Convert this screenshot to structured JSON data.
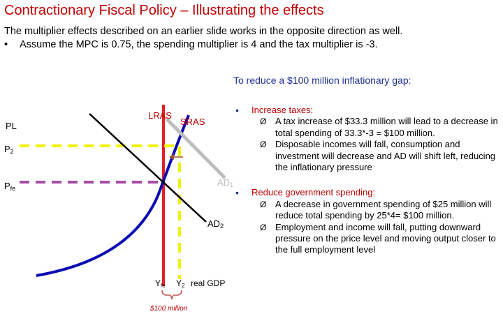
{
  "title": "Contractionary Fiscal Policy – Illustrating the effects",
  "intro": {
    "line1": "The multiplier effects described on an earlier slide works in the opposite direction as well.",
    "bullet": "•",
    "line2": "Assume the MPC is 0.75, the spending multiplier is 4 and the tax multiplier is -3."
  },
  "gap_heading": "To reduce a $100 million inflationary gap:",
  "diagram": {
    "y_axis": "PL",
    "p2": "P",
    "p2_sub": "2",
    "pfe": "P",
    "pfe_sub": "fe",
    "lras": "LRAS",
    "sras": "SRAS",
    "ad1": "AD",
    "ad1_sub": "1",
    "ad2": "AD",
    "ad2_sub": "2",
    "yfe": "Y",
    "yfe_sub": "fe",
    "y2": "Y",
    "y2_sub": "2",
    "x_axis": "real GDP",
    "gap_amount": "$100 million",
    "colors": {
      "lras": "#e41e26",
      "sras": "#0a0ab4",
      "ad1": "#bdbdbd",
      "ad2": "#000000",
      "p2_line": "#f2f200",
      "pfe_line": "#a64ca6",
      "y2_line": "#f2f200",
      "brace": "#c0504d",
      "arrow": "#a0522d"
    }
  },
  "bullets": [
    {
      "marker": "•",
      "heading": "Increase taxes:",
      "subs": [
        {
          "marker": "Ø",
          "text": "A tax increase of $33.3 million will lead to a decrease in total spending of 33.3*-3 = $100 million."
        },
        {
          "marker": "Ø",
          "text": "Disposable incomes will fall, consumption and investment will decrease and AD will shift left, reducing the inflationary pressure"
        }
      ]
    },
    {
      "marker": "•",
      "heading": "Reduce government spending:",
      "subs": [
        {
          "marker": "Ø",
          "text": "A decrease in government spending of $25 million will reduce total spending by 25*4= $100 million."
        },
        {
          "marker": "Ø",
          "text": "Employment and income will fall, putting downward pressure on the price level and moving output closer to the full employment level"
        }
      ]
    }
  ]
}
